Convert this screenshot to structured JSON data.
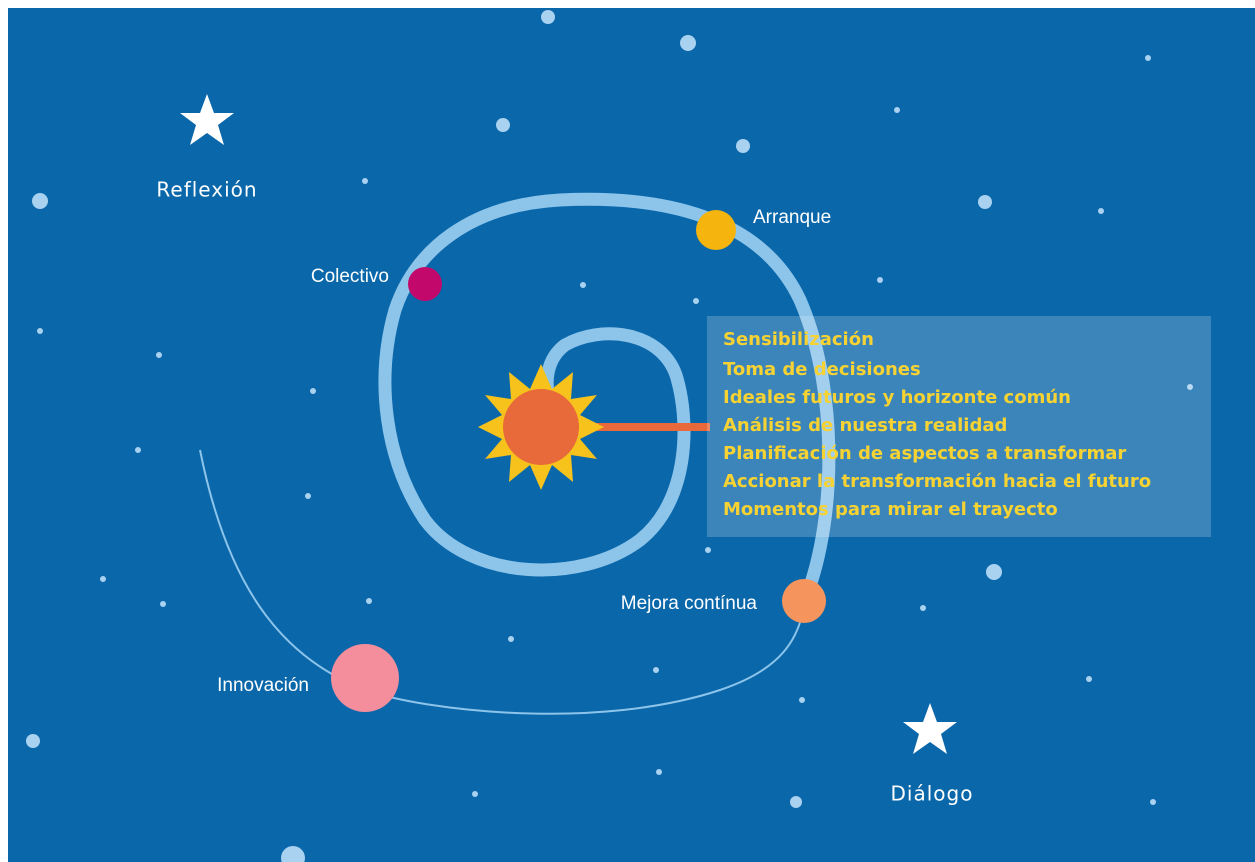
{
  "landmarks": [
    "Reflexión",
    "Diálogo"
  ],
  "milestones": [
    "Arranque",
    "Colectivo",
    "Mejora contínua",
    "Innovación"
  ],
  "phases": [
    "Sensibilización",
    "Toma de decisiones",
    "Ideales futuros y horizonte común",
    "Análisis de nuestra realidad",
    "Planificación de aspectos a transformar",
    "Accionar la transformación hacia el futuro",
    "Momentos para mirar el trayecto"
  ]
}
